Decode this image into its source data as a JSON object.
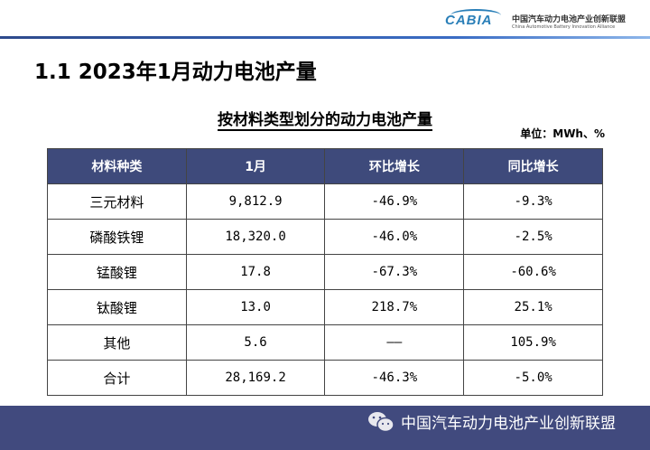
{
  "header": {
    "logo_text": "CABIA",
    "org_cn": "中国汽车动力电池产业创新联盟",
    "org_en": "China Automotive Battery Innovation Alliance"
  },
  "title": "1.1  2023年1月动力电池产量",
  "subtitle": "按材料类型划分的动力电池产量",
  "unit": "单位：MWh、%",
  "table": {
    "headers": [
      "材料种类",
      "1月",
      "环比增长",
      "同比增长"
    ],
    "rows": [
      [
        "三元材料",
        "9,812.9",
        "-46.9%",
        "-9.3%"
      ],
      [
        "磷酸铁锂",
        "18,320.0",
        "-46.0%",
        "-2.5%"
      ],
      [
        "锰酸锂",
        "17.8",
        "-67.3%",
        "-60.6%"
      ],
      [
        "钛酸锂",
        "13.0",
        "218.7%",
        "25.1%"
      ],
      [
        "其他",
        "5.6",
        "——",
        "105.9%"
      ],
      [
        "合计",
        "28,169.2",
        "-46.3%",
        "-5.0%"
      ]
    ]
  },
  "footer": {
    "icon": "wechat-icon",
    "text": "中国汽车动力电池产业创新联盟"
  },
  "colors": {
    "header_bg": "#3e4a7b",
    "footer_bg": "#414a7e"
  }
}
